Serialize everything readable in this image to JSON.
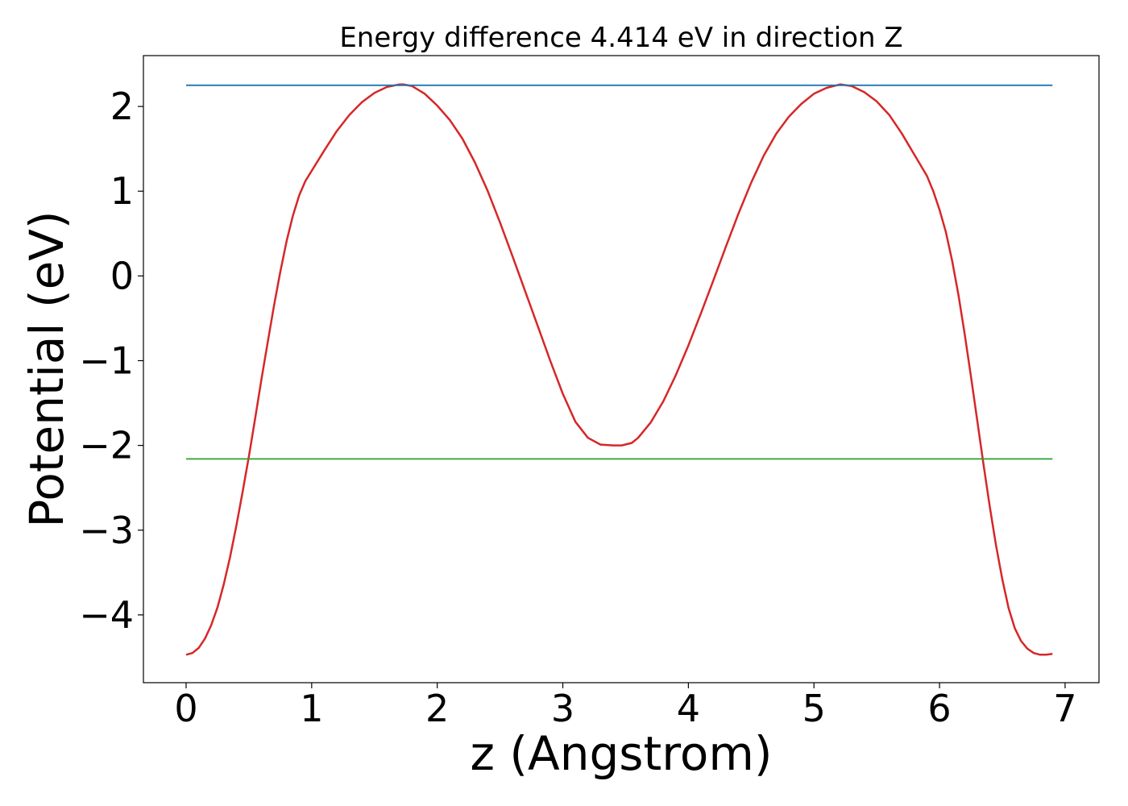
{
  "chart_data": {
    "type": "line",
    "title": "Energy difference 4.414 eV in direction Z",
    "xlabel": "z (Angstrom)",
    "ylabel": "Potential (eV)",
    "xlim": [
      -0.34,
      7.27
    ],
    "ylim": [
      -4.8,
      2.6
    ],
    "xticks": [
      0,
      1,
      2,
      3,
      4,
      5,
      6,
      7
    ],
    "yticks": [
      -4,
      -3,
      -2,
      -1,
      0,
      1,
      2
    ],
    "grid": false,
    "series": [
      {
        "color": "#d62728",
        "x": [
          0,
          0.05,
          0.1,
          0.15,
          0.2,
          0.25,
          0.3,
          0.35,
          0.4,
          0.45,
          0.5,
          0.55,
          0.6,
          0.65,
          0.7,
          0.75,
          0.8,
          0.85,
          0.9,
          0.95,
          1.0,
          1.1,
          1.2,
          1.3,
          1.4,
          1.5,
          1.6,
          1.7,
          1.73,
          1.8,
          1.9,
          2.0,
          2.1,
          2.2,
          2.3,
          2.4,
          2.5,
          2.6,
          2.7,
          2.8,
          2.9,
          3.0,
          3.1,
          3.2,
          3.3,
          3.4,
          3.47,
          3.55,
          3.6,
          3.7,
          3.8,
          3.9,
          4.0,
          4.1,
          4.2,
          4.3,
          4.4,
          4.5,
          4.6,
          4.7,
          4.8,
          4.9,
          5.0,
          5.1,
          5.21,
          5.3,
          5.4,
          5.5,
          5.6,
          5.7,
          5.8,
          5.9,
          5.95,
          6.0,
          6.05,
          6.1,
          6.15,
          6.2,
          6.25,
          6.3,
          6.35,
          6.4,
          6.45,
          6.5,
          6.55,
          6.6,
          6.65,
          6.7,
          6.75,
          6.8,
          6.85,
          6.9
        ],
        "y": [
          -4.47,
          -4.45,
          -4.39,
          -4.28,
          -4.12,
          -3.91,
          -3.64,
          -3.32,
          -2.95,
          -2.55,
          -2.13,
          -1.68,
          -1.22,
          -0.78,
          -0.35,
          0.05,
          0.41,
          0.71,
          0.95,
          1.12,
          1.24,
          1.48,
          1.71,
          1.9,
          2.05,
          2.16,
          2.23,
          2.26,
          2.26,
          2.24,
          2.15,
          2.01,
          1.84,
          1.62,
          1.34,
          1.01,
          0.63,
          0.23,
          -0.18,
          -0.59,
          -1.0,
          -1.39,
          -1.72,
          -1.91,
          -1.99,
          -2.0,
          -2.0,
          -1.97,
          -1.91,
          -1.73,
          -1.48,
          -1.17,
          -0.82,
          -0.44,
          -0.05,
          0.35,
          0.74,
          1.1,
          1.42,
          1.68,
          1.88,
          2.03,
          2.15,
          2.22,
          2.26,
          2.24,
          2.17,
          2.06,
          1.9,
          1.68,
          1.43,
          1.18,
          1.0,
          0.78,
          0.52,
          0.18,
          -0.22,
          -0.68,
          -1.18,
          -1.7,
          -2.22,
          -2.72,
          -3.18,
          -3.58,
          -3.92,
          -4.16,
          -4.31,
          -4.4,
          -4.45,
          -4.47,
          -4.47,
          -4.46
        ]
      },
      {
        "color": "#1f77b4",
        "x": [
          0,
          6.9
        ],
        "y": [
          2.25,
          2.25
        ]
      },
      {
        "color": "#2ca02c",
        "x": [
          0,
          6.9
        ],
        "y": [
          -2.16,
          -2.16
        ]
      }
    ]
  }
}
